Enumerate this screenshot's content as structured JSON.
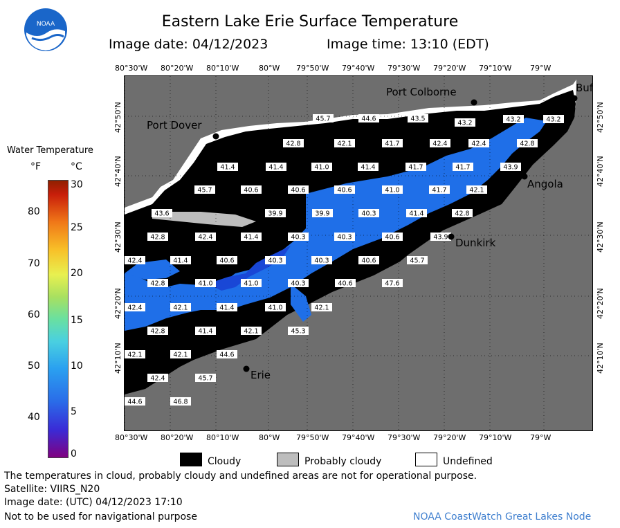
{
  "header": {
    "title": "Eastern Lake Erie Surface Temperature",
    "image_date": "Image date: 04/12/2023",
    "image_time": "Image time: 13:10 (EDT)",
    "logo_text": "NOAA"
  },
  "axes": {
    "top_lon": [
      "80°30'W",
      "80°20'W",
      "80°10'W",
      "80°W",
      "79°50'W",
      "79°40'W",
      "79°30'W",
      "79°20'W",
      "79°10'W",
      "79°W"
    ],
    "bottom_lon": [
      "80°30'W",
      "80°20'W",
      "80°10'W",
      "80°W",
      "79°50'W",
      "79°40'W",
      "79°30'W",
      "79°20'W",
      "79°10'W",
      "79°W"
    ],
    "left_lat": [
      "42°50'N",
      "42°40'N",
      "42°30'N",
      "42°20'N",
      "42°10'N"
    ],
    "right_lat": [
      "42°50'N",
      "42°40'N",
      "42°30'N",
      "42°20'N",
      "42°10'N"
    ]
  },
  "colorbar": {
    "title": "Water Temperature",
    "unit_f": "°F",
    "unit_c": "°C",
    "f_ticks": [
      "80",
      "70",
      "60",
      "50",
      "40"
    ],
    "c_ticks": [
      "30",
      "25",
      "20",
      "15",
      "10",
      "5",
      "0"
    ]
  },
  "places": {
    "port_colborne": "Port Colborne",
    "port_dover": "Port Dover",
    "angola": "Angola",
    "dunkirk": "Dunkirk",
    "erie": "Erie",
    "buffalo": "Buf"
  },
  "temps": [
    "45.7",
    "44.6",
    "43.5",
    "43.2",
    "43.2",
    "43.2",
    "42.8",
    "42.1",
    "41.7",
    "42.4",
    "42.4",
    "42.8",
    "41.4",
    "41.4",
    "41.0",
    "41.4",
    "41.7",
    "41.7",
    "43.9",
    "45.7",
    "40.6",
    "40.6",
    "40.6",
    "41.0",
    "41.7",
    "42.1",
    "43.6",
    "39.9",
    "39.9",
    "40.3",
    "41.4",
    "42.8",
    "42.8",
    "42.4",
    "41.4",
    "40.3",
    "40.3",
    "40.6",
    "43.9",
    "42.4",
    "41.4",
    "40.6",
    "40.3",
    "40.3",
    "40.6",
    "45.7",
    "42.8",
    "41.0",
    "41.0",
    "40.3",
    "40.6",
    "47.6",
    "42.4",
    "42.1",
    "41.4",
    "41.0",
    "42.1",
    "42.8",
    "41.4",
    "42.1",
    "45.3",
    "42.1",
    "42.1",
    "44.6",
    "42.4",
    "45.7",
    "44.6",
    "46.8"
  ],
  "legend": {
    "cloudy": "Cloudy",
    "probably_cloudy": "Probably cloudy",
    "undefined": "Undefined"
  },
  "footer": {
    "disclaimer": "The temperatures in cloud, probably cloudy and undefined areas are not for operational purpose.",
    "satellite": "Satellite: VIIRS_N20",
    "utc_date": "Image date: (UTC) 04/12/2023  17:10",
    "nav": "Not to be used for navigational purpose",
    "credit": "NOAA CoastWatch Great Lakes Node"
  },
  "colors": {
    "land": "#6e6e6e",
    "cloud": "#000000",
    "water_blue": "#1f6fe8",
    "water_blue_dark": "#1947d6",
    "undefined": "#ffffff",
    "probably_cloudy": "#bdbdbd"
  }
}
